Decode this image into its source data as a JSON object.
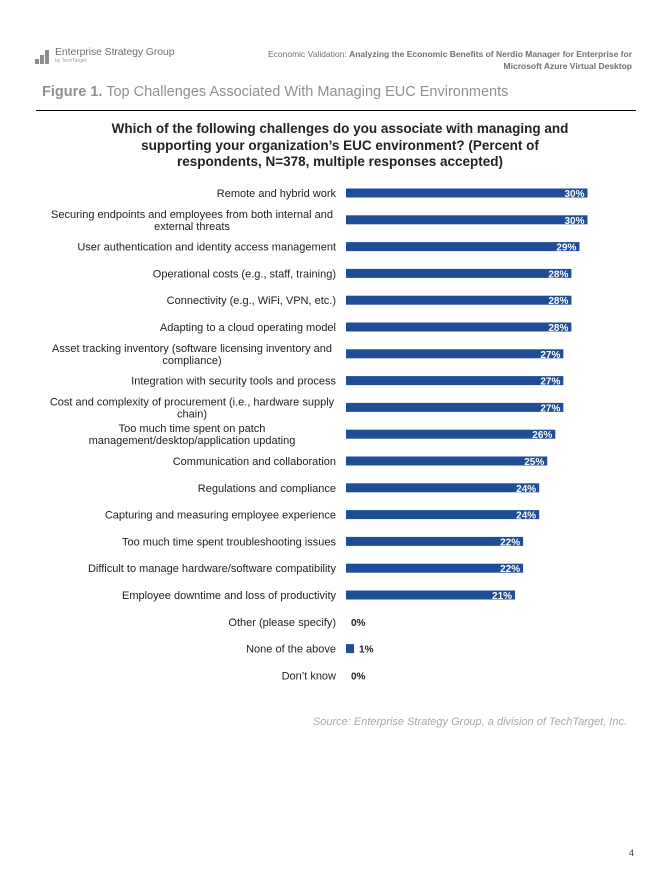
{
  "header": {
    "logo_name": "Enterprise Strategy Group",
    "logo_sub": "by TechTarget",
    "doc_prefix": "Economic Validation: ",
    "doc_title_line1": "Analyzing the Economic Benefits of Nerdio Manager for Enterprise for",
    "doc_title_line2": "Microsoft Azure Virtual Desktop"
  },
  "figure": {
    "number": "Figure 1.",
    "title": "Top Challenges Associated With Managing EUC Environments"
  },
  "chart_data": {
    "type": "bar",
    "orientation": "horizontal",
    "title_lines": [
      "Which of the following challenges do you associate with managing and",
      "supporting your organization’s EUC environment? (Percent of",
      "respondents, N=378, multiple responses accepted)"
    ],
    "categories": [
      [
        "Remote and hybrid work"
      ],
      [
        "Securing endpoints and employees from both internal and",
        "external threats"
      ],
      [
        "User authentication and identity access management"
      ],
      [
        "Operational costs (e.g., staff, training)"
      ],
      [
        "Connectivity (e.g., WiFi, VPN, etc.)"
      ],
      [
        "Adapting to a cloud operating model"
      ],
      [
        "Asset tracking inventory (software licensing inventory and",
        "compliance)"
      ],
      [
        "Integration with security tools and process"
      ],
      [
        "Cost and complexity of procurement (i.e., hardware supply",
        "chain)"
      ],
      [
        "Too much time spent on patch",
        "management/desktop/application updating"
      ],
      [
        "Communication and collaboration"
      ],
      [
        "Regulations and compliance"
      ],
      [
        "Capturing and measuring employee experience"
      ],
      [
        "Too much time spent troubleshooting issues"
      ],
      [
        "Difficult to manage hardware/software compatibility"
      ],
      [
        "Employee downtime and loss of productivity"
      ],
      [
        "Other (please specify)"
      ],
      [
        "None of the above"
      ],
      [
        "Don’t know"
      ]
    ],
    "values": [
      30,
      30,
      29,
      28,
      28,
      28,
      27,
      27,
      27,
      26,
      25,
      24,
      24,
      22,
      22,
      21,
      0,
      1,
      0
    ],
    "labels": [
      "30%",
      "30%",
      "29%",
      "28%",
      "28%",
      "28%",
      "27%",
      "27%",
      "27%",
      "26%",
      "25%",
      "24%",
      "24%",
      "22%",
      "22%",
      "21%",
      "0%",
      "1%",
      "0%"
    ],
    "xlim": [
      0,
      30
    ],
    "bar_color": "#1f4e96",
    "grid": false,
    "legend": "none"
  },
  "source": "Source: Enterprise Strategy Group, a division of TechTarget, Inc.",
  "page_number": "4"
}
